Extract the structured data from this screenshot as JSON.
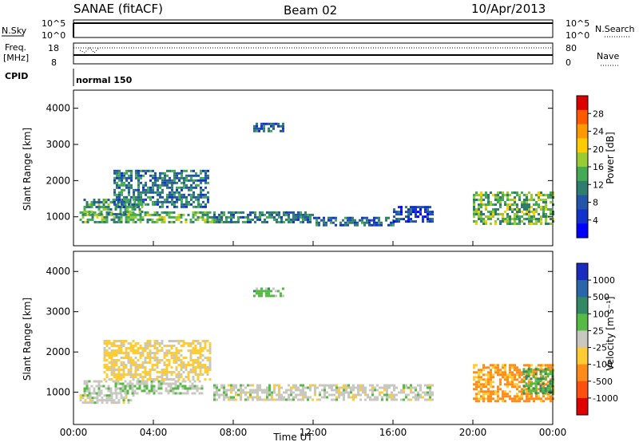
{
  "header": {
    "station": "SANAE (fitACF)",
    "beam": "Beam 02",
    "date": "10/Apr/2013"
  },
  "panels": {
    "nsky": {
      "label": "N.Sky",
      "right_label": "N.Search",
      "ticks_left": [
        "10^5",
        "10^0"
      ],
      "ticks_right": [
        "10^5",
        "10^0"
      ]
    },
    "freq": {
      "label_1": "Freq.",
      "label_2": "[MHz]",
      "right_label": "Nave",
      "ticks_left": [
        "18",
        "8"
      ],
      "ticks_right": [
        "80",
        "0"
      ]
    },
    "cpid": {
      "label": "CPID",
      "value": "normal 150"
    }
  },
  "colorbars": {
    "power": {
      "title": "Power [dB]",
      "ticks": [
        "28",
        "24",
        "20",
        "16",
        "12",
        "8",
        "4"
      ],
      "colors": [
        "#dd0000",
        "#ff5a00",
        "#ff9900",
        "#ffcc00",
        "#99cc33",
        "#44aa55",
        "#2e7d6e",
        "#2255aa",
        "#1133cc",
        "#0000ff"
      ]
    },
    "velocity": {
      "title": "Velocity [m s⁻¹]",
      "ticks": [
        "1000",
        "500",
        "100",
        "25",
        "-25",
        "-100",
        "-500",
        "-1000"
      ],
      "colors": [
        "#1a2bbf",
        "#2a66aa",
        "#338866",
        "#55bb44",
        "#c8c8c0",
        "#ffcc33",
        "#ff8c1a",
        "#ff5010",
        "#e00000"
      ]
    }
  },
  "axes": {
    "ylabel": "Slant Range [km]",
    "xlabel": "Time UT",
    "yticks": [
      "1000",
      "2000",
      "3000",
      "4000"
    ],
    "xticks": [
      "00:00",
      "04:00",
      "08:00",
      "12:00",
      "16:00",
      "20:00",
      "00:00"
    ]
  },
  "chart_data": [
    {
      "type": "heatmap",
      "name": "power",
      "x_unit": "hours UT",
      "y_unit": "km",
      "xlim": [
        0,
        24
      ],
      "ylim": [
        200,
        4500
      ],
      "zlim": [
        0,
        30
      ],
      "regions": [
        {
          "t0": 0.3,
          "t1": 7.5,
          "r0": 850,
          "r1": 1150,
          "z": 14
        },
        {
          "t0": 0.5,
          "t1": 3.5,
          "r0": 1100,
          "r1": 1500,
          "z": 12
        },
        {
          "t0": 2.0,
          "t1": 6.8,
          "r0": 1300,
          "r1": 2300,
          "z": 10
        },
        {
          "t0": 7.0,
          "t1": 12.0,
          "r0": 850,
          "r1": 1150,
          "z": 10
        },
        {
          "t0": 12.0,
          "t1": 16.0,
          "r0": 800,
          "r1": 1000,
          "z": 8
        },
        {
          "t0": 16.0,
          "t1": 18.0,
          "r0": 900,
          "r1": 1300,
          "z": 6
        },
        {
          "t0": 20.0,
          "t1": 24.0,
          "r0": 800,
          "r1": 1700,
          "z": 14
        },
        {
          "t0": 9.0,
          "t1": 10.5,
          "r0": 3400,
          "r1": 3600,
          "z": 8
        }
      ]
    },
    {
      "type": "heatmap",
      "name": "velocity",
      "x_unit": "hours UT",
      "y_unit": "km",
      "xlim": [
        0,
        24
      ],
      "ylim": [
        200,
        4500
      ],
      "zlim": [
        -1000,
        1000
      ],
      "regions": [
        {
          "t0": 0.3,
          "t1": 3.0,
          "r0": 750,
          "r1": 950,
          "z": 0
        },
        {
          "t0": 0.5,
          "t1": 6.5,
          "r0": 950,
          "r1": 1300,
          "z": 60
        },
        {
          "t0": 1.5,
          "t1": 6.8,
          "r0": 1300,
          "r1": 2300,
          "z": -150
        },
        {
          "t0": 7.0,
          "t1": 18.0,
          "r0": 800,
          "r1": 1200,
          "z": 0
        },
        {
          "t0": 20.0,
          "t1": 24.0,
          "r0": 800,
          "r1": 1700,
          "z": -400
        },
        {
          "t0": 22.5,
          "t1": 24.0,
          "r0": 1000,
          "r1": 1600,
          "z": 300
        },
        {
          "t0": 9.0,
          "t1": 10.5,
          "r0": 3400,
          "r1": 3600,
          "z": 200
        }
      ]
    }
  ]
}
